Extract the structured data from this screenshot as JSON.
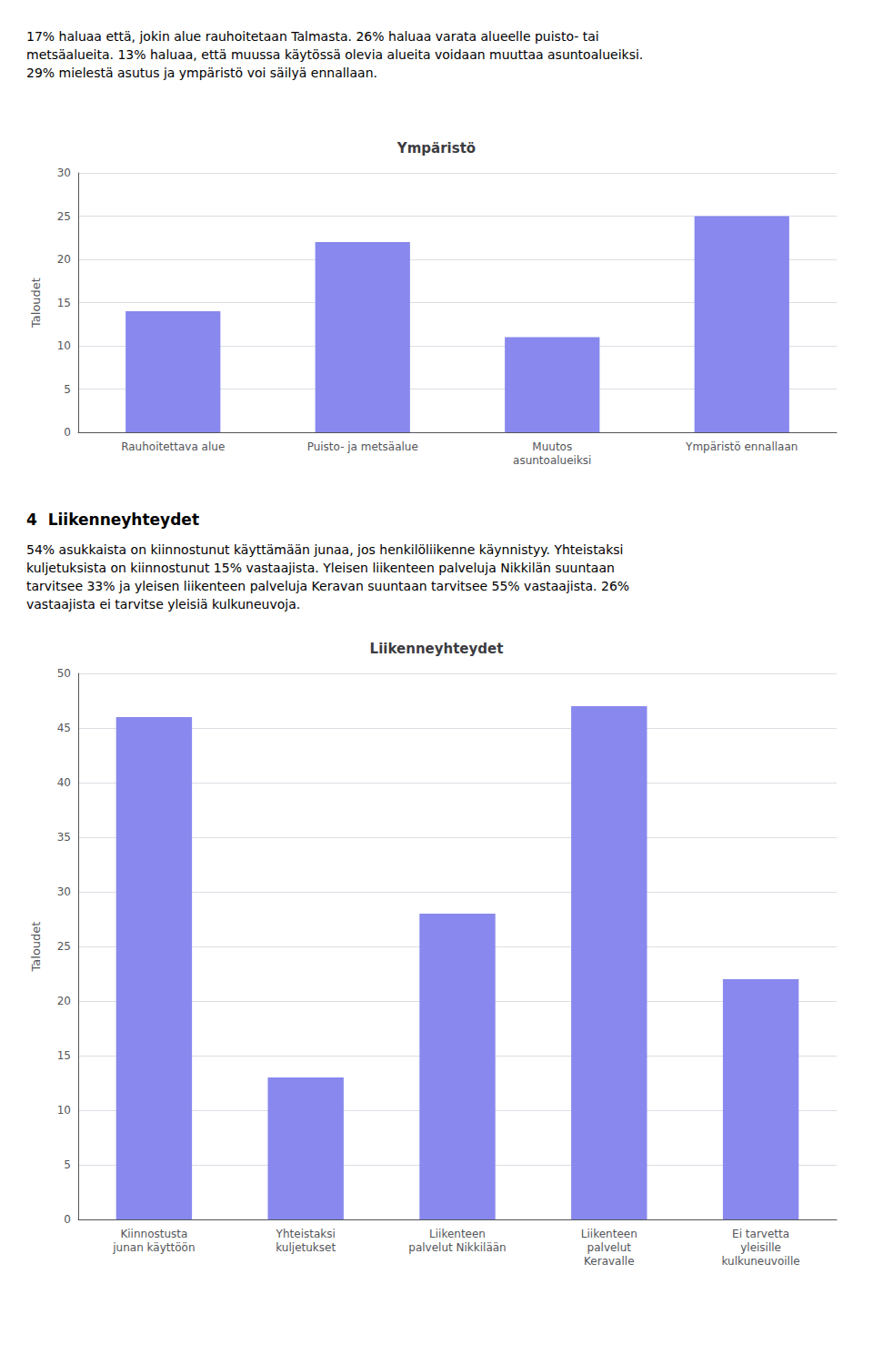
{
  "chart_data": [
    {
      "type": "bar",
      "title": "Ympäristö",
      "annotations": [
        "17% haluaa että, jokin alue rauhoitetaan Talmasta. 26% haluaa varata alueelle puisto- tai\nmetsäalueita. 13% haluaa, että muussa käytössä olevia alueita voidaan muuttaa asuntoalueiksi.\n29% mielestä asutus ja ympäristö voi säilyä ennallaan."
      ],
      "categories": [
        "Rauhoitettava alue",
        "Puisto- ja metsäalue",
        "Muutos\nasuntoalueiksi",
        "Ympäristö ennallaan"
      ],
      "values": [
        14,
        22,
        11,
        25
      ],
      "ylabel": "Taloudet",
      "color": "#8888ee",
      "ylim": [
        0,
        30
      ],
      "yticks": [
        0,
        5,
        10,
        15,
        20,
        25,
        30
      ],
      "grid": true
    },
    {
      "type": "bar",
      "title": "Liikenneyhteydet",
      "annotations": [
        "4  Liikenneyhteydet",
        "54% asukkaista on kiinnostunut käyttämään junaa, jos henkilöliikenne käynnistyy. Yhteistaksi\nkuljetuksista on kiinnostunut 15% vastaajista. Yleisen liikenteen palveluja Nikkilän suuntaan\ntarvitsee 33% ja yleisen liikenteen palveluja Keravan suuntaan tarvitsee 55% vastaajista. 26%\nvastaajista ei tarvitse yleisiä kulkuneuvoja."
      ],
      "categories": [
        "Kiinnostusta\njunan käyttöön",
        "Yhteistaksi\nkuljetukset",
        "Liikenteen\npalvelut Nikkilään",
        "Liikenteen\npalvelut\nKeravalle",
        "Ei tarvetta\nyleisille\nkulkuneuvoille"
      ],
      "values": [
        46,
        13,
        28,
        47,
        22
      ],
      "ylabel": "Taloudet",
      "color": "#8888ee",
      "ylim": [
        0,
        50
      ],
      "yticks": [
        0,
        5,
        10,
        15,
        20,
        25,
        30,
        35,
        40,
        45,
        50
      ],
      "grid": true
    }
  ]
}
